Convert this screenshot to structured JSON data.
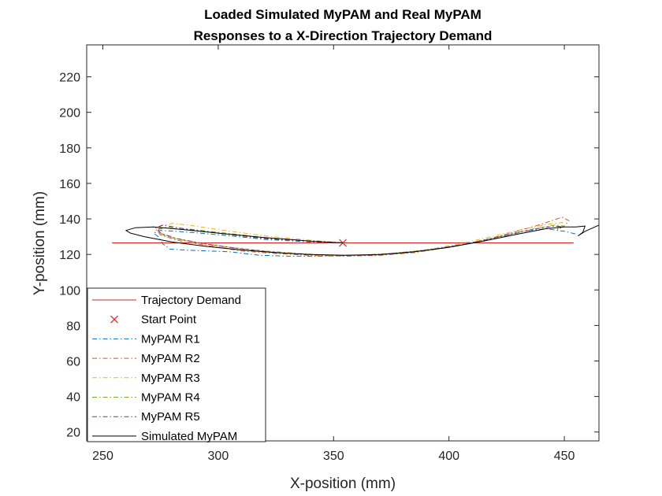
{
  "chart_data": {
    "type": "line",
    "title": [
      "Loaded Simulated MyPAM and Real MyPAM",
      "Responses to a X-Direction Trajectory Demand"
    ],
    "xlabel": "X-position (mm)",
    "ylabel": "Y-position (mm)",
    "xlim": [
      243,
      465
    ],
    "ylim": [
      15,
      238
    ],
    "xticks": [
      250,
      300,
      350,
      400,
      450
    ],
    "yticks": [
      20,
      40,
      60,
      80,
      100,
      120,
      140,
      160,
      180,
      200,
      220
    ],
    "grid": false,
    "legend_position": "bottom-left",
    "series": [
      {
        "name": "Trajectory Demand",
        "color": "#d62020",
        "dash": "solid",
        "marker": null,
        "points": [
          [
            254,
            126.5
          ],
          [
            454,
            126.5
          ]
        ]
      },
      {
        "name": "Start Point",
        "color": "#ee2020",
        "dash": "none",
        "marker": "x",
        "points": [
          [
            354,
            126.5
          ]
        ]
      },
      {
        "name": "MyPAM R1",
        "color": "#0072bd",
        "dash": "dashdot",
        "marker": null,
        "points": [
          [
            354,
            126.5
          ],
          [
            340,
            127
          ],
          [
            320,
            128.5
          ],
          [
            305,
            130.5
          ],
          [
            292,
            132
          ],
          [
            282,
            133
          ],
          [
            275,
            133.5
          ],
          [
            272,
            132
          ],
          [
            274,
            130
          ],
          [
            276,
            126
          ],
          [
            279,
            123
          ],
          [
            285,
            122.5
          ],
          [
            295,
            122
          ],
          [
            305,
            121.5
          ],
          [
            318,
            119.5
          ],
          [
            330,
            119
          ],
          [
            345,
            119
          ],
          [
            360,
            119.5
          ],
          [
            375,
            120.5
          ],
          [
            390,
            122.5
          ],
          [
            405,
            125.5
          ],
          [
            420,
            129.5
          ],
          [
            432,
            133
          ],
          [
            442,
            134.5
          ],
          [
            450,
            133
          ],
          [
            455,
            131.5
          ]
        ]
      },
      {
        "name": "MyPAM R2",
        "color": "#d95319",
        "dash": "dashdot",
        "marker": null,
        "points": [
          [
            354,
            126.5
          ],
          [
            340,
            127.5
          ],
          [
            320,
            129
          ],
          [
            300,
            132
          ],
          [
            285,
            134
          ],
          [
            276,
            135
          ],
          [
            273,
            134
          ],
          [
            275,
            131
          ],
          [
            282,
            128
          ],
          [
            295,
            125
          ],
          [
            310,
            122
          ],
          [
            325,
            120.5
          ],
          [
            340,
            119.5
          ],
          [
            355,
            119
          ],
          [
            370,
            119.5
          ],
          [
            385,
            121
          ],
          [
            400,
            124
          ],
          [
            415,
            128
          ],
          [
            428,
            132.5
          ],
          [
            440,
            137
          ],
          [
            449,
            141
          ],
          [
            452,
            139
          ],
          [
            450,
            136
          ],
          [
            447,
            134.5
          ]
        ]
      },
      {
        "name": "MyPAM R3",
        "color": "#edb120",
        "dash": "dashdot",
        "marker": null,
        "points": [
          [
            354,
            126.5
          ],
          [
            340,
            128
          ],
          [
            320,
            130.5
          ],
          [
            300,
            134
          ],
          [
            287,
            136.5
          ],
          [
            280,
            137.5
          ],
          [
            275,
            136
          ],
          [
            274,
            133
          ],
          [
            278,
            130
          ],
          [
            288,
            127
          ],
          [
            300,
            124.5
          ],
          [
            315,
            122
          ],
          [
            330,
            120.5
          ],
          [
            345,
            119.5
          ],
          [
            360,
            119.5
          ],
          [
            375,
            120.5
          ],
          [
            390,
            122.5
          ],
          [
            405,
            126
          ],
          [
            420,
            130.5
          ],
          [
            433,
            134.5
          ],
          [
            443,
            137
          ],
          [
            449,
            138
          ],
          [
            450,
            136
          ],
          [
            447,
            135.5
          ]
        ]
      },
      {
        "name": "MyPAM R4",
        "color": "#77ac30",
        "dash": "dashdot",
        "marker": null,
        "points": [
          [
            354,
            126.5
          ],
          [
            340,
            127.5
          ],
          [
            320,
            129.5
          ],
          [
            300,
            132.5
          ],
          [
            286,
            134.5
          ],
          [
            278,
            135.5
          ],
          [
            274,
            134
          ],
          [
            275,
            131.5
          ],
          [
            281,
            129
          ],
          [
            292,
            126.5
          ],
          [
            305,
            124
          ],
          [
            320,
            122
          ],
          [
            335,
            120.5
          ],
          [
            350,
            119.5
          ],
          [
            365,
            119.5
          ],
          [
            380,
            120.5
          ],
          [
            395,
            123
          ],
          [
            410,
            126.5
          ],
          [
            425,
            131
          ],
          [
            437,
            134.5
          ],
          [
            446,
            136.5
          ],
          [
            450,
            136
          ],
          [
            448,
            134.5
          ]
        ]
      },
      {
        "name": "MyPAM R5",
        "color": "#7e2f8e",
        "dash": "dashdot",
        "marker": null,
        "points": [
          [
            354,
            126.5
          ],
          [
            340,
            127.5
          ],
          [
            320,
            129
          ],
          [
            300,
            132
          ],
          [
            285,
            134.5
          ],
          [
            276,
            136.5
          ],
          [
            273,
            135
          ],
          [
            275,
            132
          ],
          [
            282,
            129
          ],
          [
            294,
            126
          ],
          [
            308,
            123.5
          ],
          [
            322,
            121.5
          ],
          [
            337,
            120
          ],
          [
            352,
            119.5
          ],
          [
            367,
            119.5
          ],
          [
            382,
            121
          ],
          [
            397,
            123.5
          ],
          [
            412,
            127
          ],
          [
            426,
            131
          ],
          [
            438,
            134.5
          ],
          [
            446,
            136
          ],
          [
            449,
            135.5
          ],
          [
            447,
            134
          ]
        ]
      },
      {
        "name": "Simulated MyPAM",
        "color": "#000000",
        "dash": "solid",
        "marker": null,
        "points": [
          [
            354,
            126.5
          ],
          [
            340,
            127.5
          ],
          [
            320,
            129.5
          ],
          [
            300,
            132
          ],
          [
            285,
            134
          ],
          [
            272,
            135.5
          ],
          [
            264,
            135
          ],
          [
            260,
            133.5
          ],
          [
            262,
            132
          ],
          [
            268,
            130
          ],
          [
            280,
            127
          ],
          [
            295,
            124.5
          ],
          [
            310,
            122.5
          ],
          [
            325,
            121
          ],
          [
            340,
            120
          ],
          [
            355,
            119.5
          ],
          [
            370,
            120
          ],
          [
            385,
            121.5
          ],
          [
            400,
            124
          ],
          [
            415,
            127.5
          ],
          [
            430,
            131.5
          ],
          [
            442,
            134.5
          ],
          [
            450,
            135.5
          ],
          [
            455,
            135.5
          ],
          [
            459,
            136
          ],
          [
            458,
            132.5
          ],
          [
            456,
            130.5
          ],
          [
            459,
            133
          ],
          [
            465,
            136.5
          ]
        ]
      }
    ]
  }
}
